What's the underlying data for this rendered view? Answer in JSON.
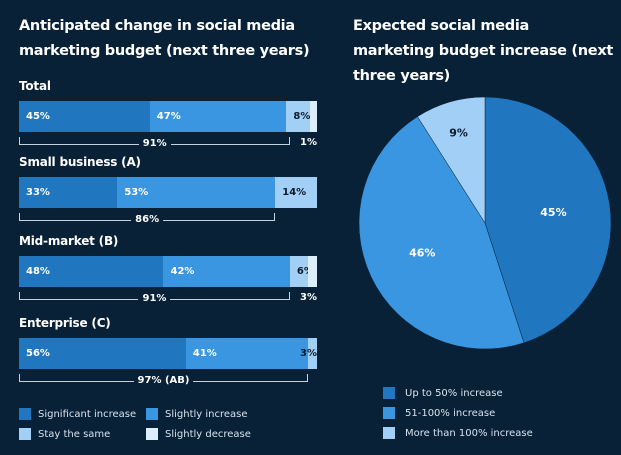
{
  "colors": {
    "background": "#082136",
    "significant": "#2176c0",
    "slight": "#3a96e0",
    "same": "#a2cff5",
    "decrease": "#dcedfc",
    "dark_text": "#0b1a2a"
  },
  "chart_data": [
    {
      "type": "bar",
      "orientation": "horizontal-stacked",
      "title": "Anticipated change in social media marketing budget (next three years)",
      "legend": [
        "Significant increase",
        "Slightly increase",
        "Stay the same",
        "Slightly decrease"
      ],
      "legend_placement": "bottom",
      "groups": [
        {
          "label": "Total",
          "values": [
            45,
            47,
            8,
            1
          ],
          "labels": [
            "45%",
            "47%",
            "8%",
            ""
          ],
          "bracket": "91%",
          "outside": "1%"
        },
        {
          "label": "Small business (A)",
          "values": [
            33,
            53,
            14,
            0
          ],
          "labels": [
            "33%",
            "53%",
            "14%",
            ""
          ],
          "bracket": "86%",
          "outside": ""
        },
        {
          "label": "Mid-market (B)",
          "values": [
            48,
            42,
            6,
            3
          ],
          "labels": [
            "48%",
            "42%",
            "6%",
            ""
          ],
          "bracket": "91%",
          "outside": "3%"
        },
        {
          "label": "Enterprise (C)",
          "values": [
            56,
            41,
            3,
            0
          ],
          "labels": [
            "56%",
            "41%",
            "3%",
            ""
          ],
          "bracket": "97% (AB)",
          "outside": ""
        }
      ]
    },
    {
      "type": "pie",
      "title": "Expected social media marketing budget increase (next three years)",
      "slices": [
        {
          "name": "Up to 50% increase",
          "value": 45,
          "label": "45%"
        },
        {
          "name": "51-100% increase",
          "value": 46,
          "label": "46%"
        },
        {
          "name": "More than 100% increase",
          "value": 9,
          "label": "9%"
        }
      ],
      "legend_placement": "bottom"
    }
  ]
}
